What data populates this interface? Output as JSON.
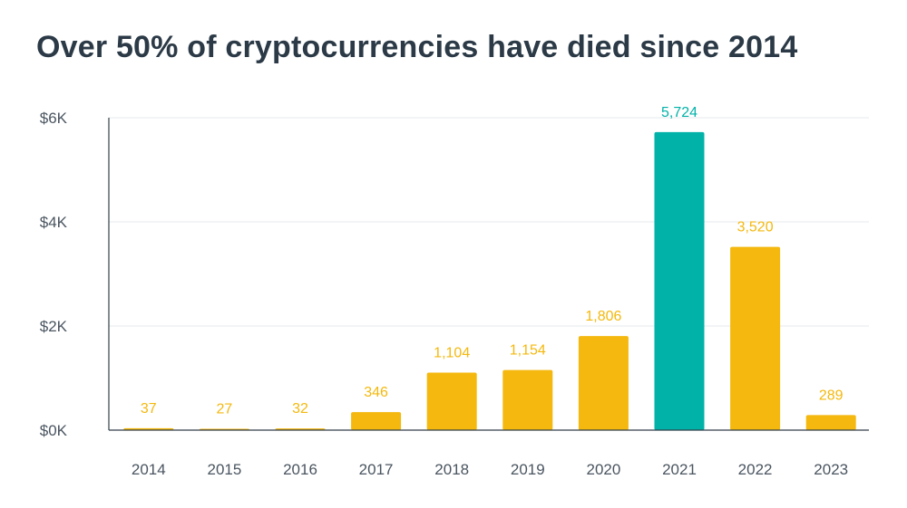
{
  "title": "Over 50% of cryptocurrencies have died since 2014",
  "colors": {
    "default_bar": "#F4B80E",
    "highlight_bar": "#00B2A8",
    "axis": "#333f4a",
    "grid": "#e6eaee",
    "text": "#4a5560"
  },
  "chart_data": {
    "type": "bar",
    "title": "Over 50% of cryptocurrencies have died since 2014",
    "xlabel": "",
    "ylabel": "",
    "categories": [
      "2014",
      "2015",
      "2016",
      "2017",
      "2018",
      "2019",
      "2020",
      "2021",
      "2022",
      "2023"
    ],
    "values": [
      37,
      27,
      32,
      346,
      1104,
      1154,
      1806,
      5724,
      3520,
      289
    ],
    "data_labels": [
      "37",
      "27",
      "32",
      "346",
      "1,104",
      "1,154",
      "1,806",
      "5,724",
      "3,520",
      "289"
    ],
    "highlight_category": "2021",
    "ylim": [
      0,
      6000
    ],
    "yticks": [
      0,
      2000,
      4000,
      6000
    ],
    "ytick_labels": [
      "$0K",
      "$2K",
      "$4K",
      "$6K"
    ],
    "grid": true,
    "legend": "none"
  }
}
